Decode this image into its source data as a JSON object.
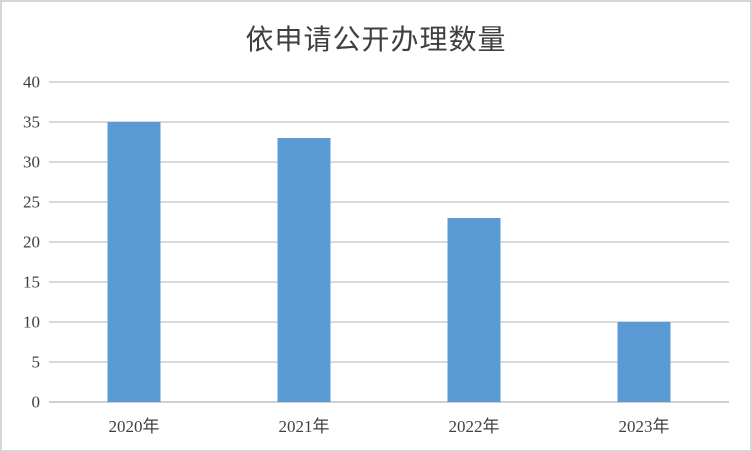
{
  "chart": {
    "colors": {
      "bar": "#5B9BD5",
      "gridline": "#D9D9D9",
      "axis_line": "#CFCFCF",
      "text": "#404040",
      "title_text": "#3F3F3F",
      "frame_border": "#D6D6D6",
      "background": "#FFFFFF"
    }
  },
  "chart_data": {
    "type": "bar",
    "title": "依申请公开办理数量",
    "categories": [
      "2020年",
      "2021年",
      "2022年",
      "2023年"
    ],
    "values": [
      35,
      33,
      23,
      10
    ],
    "xlabel": "",
    "ylabel": "",
    "ylim": [
      0,
      40
    ],
    "yticks": [
      0,
      5,
      10,
      15,
      20,
      25,
      30,
      35,
      40
    ],
    "grid": true,
    "legend": false,
    "legend_position": "none"
  }
}
